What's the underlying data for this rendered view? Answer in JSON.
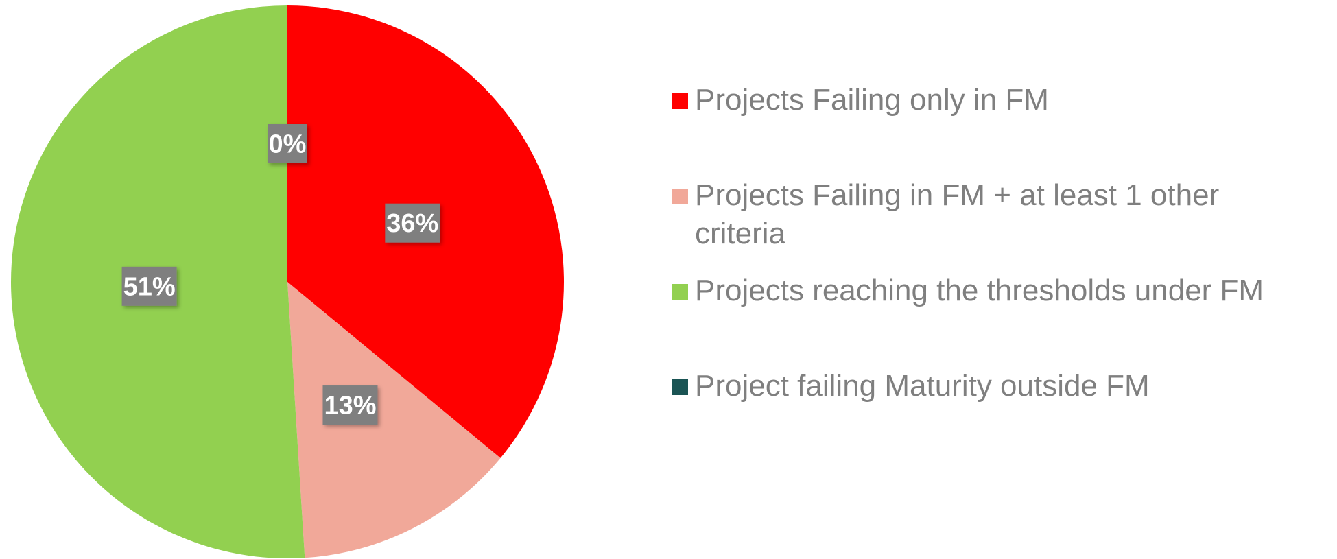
{
  "chart_data": {
    "type": "pie",
    "categories": [
      "Projects Failing only in FM",
      "Projects Failing in FM + at least 1 other criteria",
      "Projects reaching the thresholds under FM",
      "Project failing Maturity outside FM"
    ],
    "values": [
      36,
      13,
      51,
      0
    ],
    "value_labels": [
      "36%",
      "13%",
      "51%",
      "0%"
    ],
    "colors": [
      "#ff0000",
      "#f1a899",
      "#92d050",
      "#1a5454"
    ],
    "legend": "right"
  }
}
